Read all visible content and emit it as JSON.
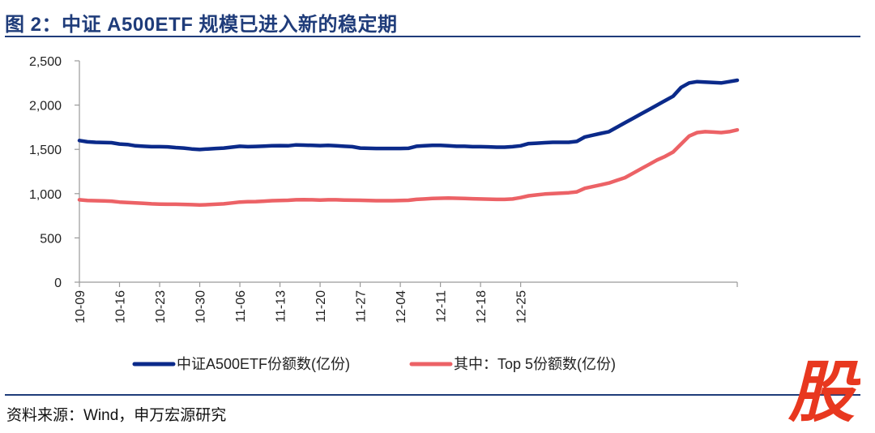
{
  "header": {
    "title": "图 2：中证 A500ETF 规模已进入新的稳定期"
  },
  "footer": {
    "source": "资料来源：Wind，申万宏源研究"
  },
  "watermark": {
    "text": "股",
    "color": "#e8381f"
  },
  "colors": {
    "series1": "#0b2a8a",
    "series2": "#ec6266",
    "axis": "#9a9a9a",
    "rule": "#1f3c7a"
  },
  "chart_data": {
    "type": "line",
    "title": "",
    "xlabel": "",
    "ylabel": "",
    "ylim": [
      0,
      2500
    ],
    "yticks": [
      0,
      500,
      1000,
      1500,
      2000,
      2500
    ],
    "ytick_labels": [
      "0",
      "500",
      "1,000",
      "1,500",
      "2,000",
      "2,500"
    ],
    "xtick_labels": [
      "10-09",
      "10-16",
      "10-23",
      "10-30",
      "11-06",
      "11-13",
      "11-20",
      "11-27",
      "12-04",
      "12-11",
      "12-18",
      "12-25"
    ],
    "xtick_index": [
      0,
      5,
      10,
      15,
      20,
      25,
      30,
      35,
      40,
      45,
      50,
      55
    ],
    "legend_position": "bottom",
    "series": [
      {
        "name": "中证A500ETF份额数(亿份)",
        "color": "#0b2a8a",
        "values": [
          1600,
          1585,
          1580,
          1578,
          1575,
          1560,
          1555,
          1540,
          1535,
          1530,
          1530,
          1528,
          1520,
          1515,
          1505,
          1498,
          1505,
          1510,
          1515,
          1525,
          1535,
          1530,
          1533,
          1537,
          1540,
          1542,
          1540,
          1550,
          1548,
          1545,
          1542,
          1545,
          1540,
          1535,
          1530,
          1515,
          1512,
          1510,
          1510,
          1510,
          1510,
          1512,
          1535,
          1540,
          1545,
          1545,
          1540,
          1535,
          1535,
          1530,
          1530,
          1528,
          1525,
          1525,
          1530,
          1540,
          1565,
          1570,
          1575,
          1580,
          1580,
          1580,
          1590,
          1640,
          1660,
          1680,
          1700,
          1750,
          1800,
          1850,
          1900,
          1950,
          2000,
          2050,
          2100,
          2200,
          2250,
          2265,
          2260,
          2255,
          2250,
          2265,
          2280
        ]
      },
      {
        "name": "其中：Top 5份额数(亿份)",
        "color": "#ec6266",
        "values": [
          930,
          922,
          920,
          918,
          915,
          905,
          900,
          895,
          890,
          885,
          882,
          880,
          880,
          878,
          875,
          872,
          875,
          880,
          885,
          895,
          905,
          908,
          910,
          915,
          920,
          922,
          925,
          930,
          932,
          930,
          928,
          930,
          930,
          928,
          926,
          925,
          922,
          920,
          920,
          920,
          922,
          925,
          935,
          940,
          945,
          948,
          950,
          948,
          945,
          942,
          940,
          938,
          935,
          935,
          940,
          955,
          975,
          985,
          995,
          1000,
          1005,
          1010,
          1020,
          1060,
          1080,
          1100,
          1120,
          1150,
          1180,
          1230,
          1280,
          1330,
          1380,
          1420,
          1470,
          1560,
          1650,
          1690,
          1700,
          1695,
          1690,
          1700,
          1720
        ]
      }
    ]
  }
}
